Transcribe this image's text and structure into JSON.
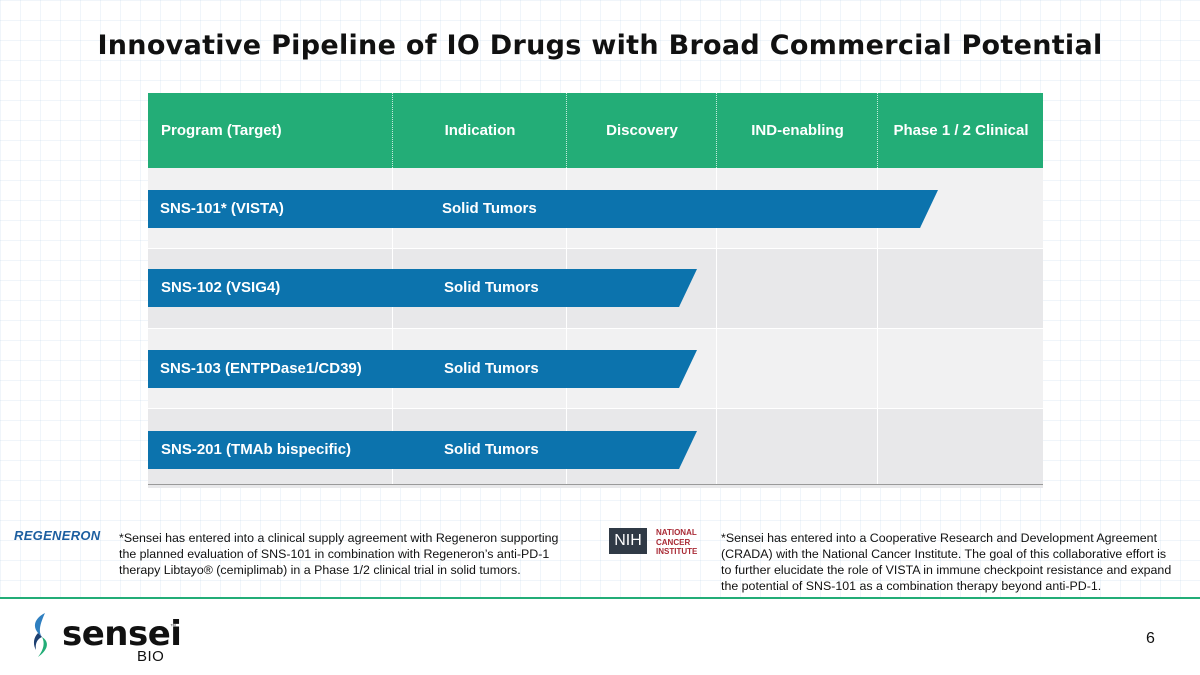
{
  "slide": {
    "title": "Innovative Pipeline of IO Drugs with Broad Commercial Potential",
    "page_number": "6"
  },
  "table": {
    "headers": [
      "Program (Target)",
      "Indication",
      "Discovery",
      "IND-enabling",
      "Phase 1 / 2 Clinical"
    ],
    "programs": [
      {
        "name": "SNS-101* (VISTA)",
        "indication": "Solid Tumors",
        "stage_reached": "Phase 1 / 2 Clinical"
      },
      {
        "name": "SNS-102 (VSIG4)",
        "indication": "Solid Tumors",
        "stage_reached": "Discovery"
      },
      {
        "name": "SNS-103 (ENTPDase1/CD39)",
        "indication": "Solid Tumors",
        "stage_reached": "Discovery"
      },
      {
        "name": "SNS-201 (TMAb bispecific)",
        "indication": "Solid Tumors",
        "stage_reached": "Discovery"
      }
    ],
    "colors": {
      "header": "#23ad77",
      "bar": "#0c73ad"
    }
  },
  "footnotes": {
    "regeneron_logo": "REGENERON",
    "regeneron_note": "*Sensei has entered into a clinical supply agreement with Regeneron supporting the planned evaluation of SNS-101 in combination with Regeneron’s anti-PD-1 therapy Libtayo® (cemiplimab) in a Phase 1/2 clinical trial in solid tumors.",
    "nih_logo": "NIH",
    "nci_logo_lines": [
      "NATIONAL",
      "CANCER",
      "INSTITUTE"
    ],
    "nci_note": "*Sensei has entered into a Cooperative Research and Development Agreement (CRADA) with the National Cancer Institute. The goal of this collaborative effort is to further elucidate the role of VISTA in immune checkpoint resistance and expand the potential of SNS-101 as a combination therapy beyond anti-PD-1."
  },
  "brand": {
    "name": "sensei",
    "trademark": "™",
    "sub": "BIO",
    "icon": "sensei-leaf-icon"
  }
}
